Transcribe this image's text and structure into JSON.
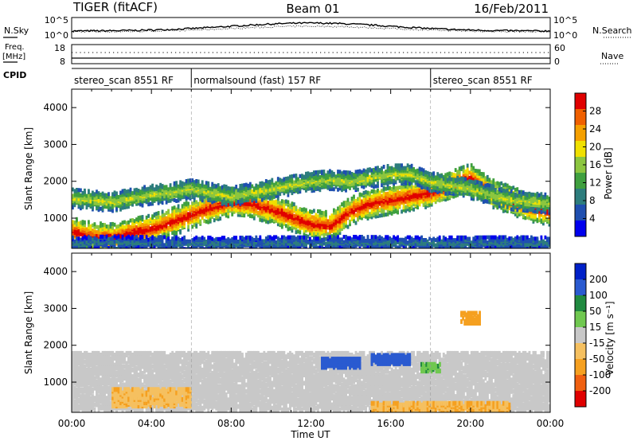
{
  "header": {
    "radar": "TIGER (fitACF)",
    "beam": "Beam 01",
    "date": "16/Feb/2011"
  },
  "summary": {
    "nsky_label": "N.Sky",
    "nsearch_label": "N.Search",
    "freq_label_1": "Freq.",
    "freq_label_2": "[MHz]",
    "nave_label": "Nave",
    "cpid_label": "CPID",
    "nsky_ticks": [
      "10^5",
      "10^0"
    ],
    "nsearch_ticks": [
      "10^5",
      "10^0"
    ],
    "freq_ticks": [
      "18",
      "8"
    ],
    "nave_ticks": [
      "60",
      "0"
    ],
    "freq_value": 13,
    "nave_value": 38
  },
  "cpid": [
    {
      "label": "stereo_scan 8551 RF",
      "start": 0,
      "end": 6
    },
    {
      "label": "normalsound (fast) 157 RF",
      "start": 6,
      "end": 18
    },
    {
      "label": "stereo_scan 8551 RF",
      "start": 18,
      "end": 24
    }
  ],
  "chart_data": [
    {
      "type": "heatmap",
      "name": "power",
      "xlabel": "",
      "ylabel": "Slant Range [km]",
      "xlim": [
        0,
        24
      ],
      "ylim": [
        180,
        4500
      ],
      "y_ticks": [
        "1000",
        "2000",
        "3000",
        "4000"
      ],
      "colorbar_label": "Power [dB]",
      "colorbar_ticks": [
        "4",
        "8",
        "12",
        "16",
        "20",
        "24",
        "28"
      ],
      "colorbar_range": [
        0,
        30
      ],
      "colors": [
        "#0000ee",
        "#1f4fb0",
        "#2d7d7d",
        "#3fa03f",
        "#8cc63f",
        "#f0e000",
        "#f5a000",
        "#f06000",
        "#e00000"
      ],
      "bands": [
        {
          "x": [
            0,
            1,
            2,
            3,
            4,
            5,
            6,
            7,
            8,
            9,
            10,
            11,
            12,
            13,
            14,
            15,
            16,
            17,
            18,
            19,
            20,
            21,
            22,
            23,
            24
          ],
          "range_km": [
            650,
            520,
            480,
            620,
            720,
            900,
            1100,
            1300,
            1450,
            1400,
            1250,
            1050,
            850,
            800,
            1200,
            1400,
            1500,
            1600,
            1700,
            1900,
            2100,
            1700,
            1500,
            1300,
            1200
          ],
          "width_km": 380,
          "value": 26
        },
        {
          "x": [
            0,
            1,
            2,
            3,
            4,
            5,
            6,
            7,
            8,
            9,
            10,
            11,
            12,
            13,
            14,
            15,
            16,
            17,
            18,
            19,
            20,
            21,
            22,
            23,
            24
          ],
          "range_km": [
            1550,
            1500,
            1450,
            1550,
            1650,
            1700,
            1800,
            1700,
            1600,
            1700,
            1800,
            1900,
            2000,
            2050,
            2000,
            2100,
            2200,
            2200,
            2000,
            1900,
            1800,
            1650,
            1500,
            1450,
            1400
          ],
          "width_km": 260,
          "value": 15
        },
        {
          "x": [
            0,
            2,
            4,
            6,
            8,
            10,
            12,
            14,
            16,
            18,
            20,
            22,
            24
          ],
          "range_km": [
            320,
            350,
            330,
            320,
            310,
            330,
            320,
            340,
            330,
            320,
            320,
            330,
            320
          ],
          "width_km": 160,
          "value": 7
        }
      ]
    },
    {
      "type": "heatmap",
      "name": "velocity",
      "xlabel": "Time UT",
      "ylabel": "Slant Range [km]",
      "xlim": [
        0,
        24
      ],
      "ylim": [
        180,
        4500
      ],
      "x_ticks": [
        "00:00",
        "04:00",
        "08:00",
        "12:00",
        "16:00",
        "20:00",
        "00:00"
      ],
      "y_ticks": [
        "1000",
        "2000",
        "3000",
        "4000"
      ],
      "colorbar_label": "Velocity [m s⁻¹]",
      "colorbar_ticks": [
        "200",
        "100",
        "50",
        "15",
        "-15",
        "-50",
        "-100",
        "-200"
      ],
      "colors": [
        "#0020c8",
        "#2a5ad0",
        "#208a40",
        "#70c850",
        "#c8c8c8",
        "#f5c060",
        "#f5a020",
        "#f06010",
        "#e00000"
      ],
      "cells": [
        {
          "x": [
            0,
            24
          ],
          "range_km": [
            250,
            1800
          ],
          "value": 0
        },
        {
          "x": [
            12.5,
            14.5
          ],
          "range_km": [
            1400,
            1650
          ],
          "value": 180
        },
        {
          "x": [
            15,
            17
          ],
          "range_km": [
            1500,
            1750
          ],
          "value": 160
        },
        {
          "x": [
            17.5,
            18.5
          ],
          "range_km": [
            1300,
            1500
          ],
          "value": 40
        },
        {
          "x": [
            2,
            6
          ],
          "range_km": [
            350,
            800
          ],
          "value": -40
        },
        {
          "x": [
            15,
            22
          ],
          "range_km": [
            200,
            450
          ],
          "value": -45
        },
        {
          "x": [
            19.5,
            20.5
          ],
          "range_km": [
            2600,
            2900
          ],
          "value": -80
        }
      ]
    }
  ]
}
